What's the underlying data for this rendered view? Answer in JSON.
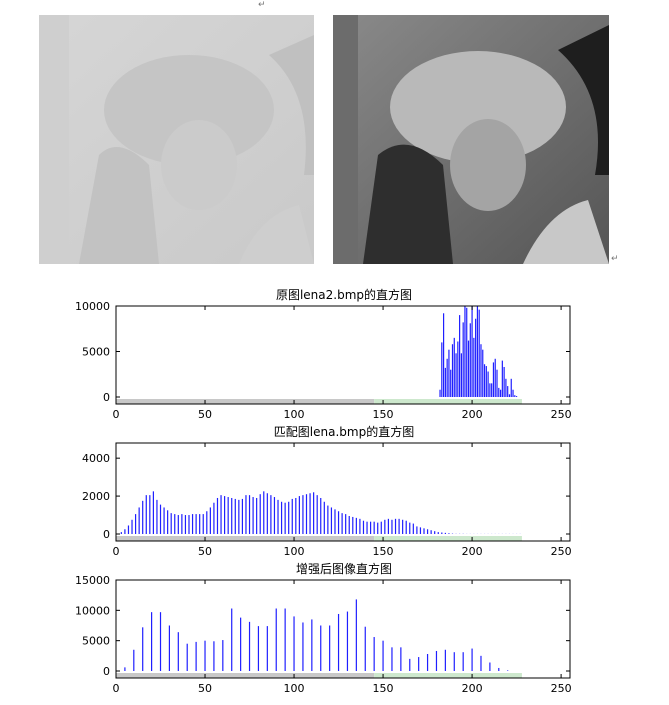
{
  "chart_data": [
    {
      "type": "bar",
      "title": "原图lena2.bmp的直方图",
      "xlim": [
        0,
        255
      ],
      "ylim": [
        0,
        10000
      ],
      "xticks": [
        0,
        50,
        100,
        150,
        200,
        250
      ],
      "yticks": [
        0,
        5000,
        10000
      ],
      "bar_color": "#1f1fff",
      "x": [
        182,
        183,
        184,
        185,
        186,
        187,
        188,
        189,
        190,
        191,
        192,
        193,
        194,
        195,
        196,
        197,
        198,
        199,
        200,
        201,
        202,
        203,
        204,
        205,
        206,
        207,
        208,
        209,
        210,
        211,
        212,
        213,
        214,
        215,
        216,
        217,
        218,
        219,
        220,
        221,
        222,
        223,
        224,
        225
      ],
      "values": [
        800,
        6000,
        9200,
        3200,
        4200,
        5200,
        3000,
        5800,
        6500,
        4800,
        6100,
        9000,
        4800,
        8200,
        10000,
        9800,
        6200,
        8100,
        10000,
        6500,
        8600,
        10000,
        9600,
        5800,
        5200,
        3600,
        3400,
        2800,
        1500,
        1500,
        3800,
        4200,
        3000,
        1000,
        800,
        4000,
        3300,
        2000,
        1200,
        300,
        2000,
        800,
        200,
        100
      ]
    },
    {
      "type": "bar",
      "title": "匹配图lena.bmp的直方图",
      "xlim": [
        0,
        255
      ],
      "ylim": [
        0,
        4800
      ],
      "xticks": [
        0,
        50,
        100,
        150,
        200,
        250
      ],
      "yticks": [
        0,
        2000,
        4000
      ],
      "bar_color": "#1f1fff",
      "x": [
        3,
        5,
        7,
        9,
        11,
        13,
        15,
        17,
        19,
        21,
        23,
        25,
        27,
        29,
        31,
        33,
        35,
        37,
        39,
        41,
        43,
        45,
        47,
        49,
        51,
        53,
        55,
        57,
        59,
        61,
        63,
        65,
        67,
        69,
        71,
        73,
        75,
        77,
        79,
        81,
        83,
        85,
        87,
        89,
        91,
        93,
        95,
        97,
        99,
        101,
        103,
        105,
        107,
        109,
        111,
        113,
        115,
        117,
        119,
        121,
        123,
        125,
        127,
        129,
        131,
        133,
        135,
        137,
        139,
        141,
        143,
        145,
        147,
        149,
        151,
        153,
        155,
        157,
        159,
        161,
        163,
        165,
        167,
        169,
        171,
        173,
        175,
        177,
        179,
        181,
        183,
        185,
        187,
        189,
        191,
        193,
        195,
        197,
        199,
        201,
        203,
        205,
        207,
        209,
        211,
        213,
        215,
        217,
        219,
        221,
        223,
        225,
        227
      ],
      "values": [
        100,
        250,
        450,
        750,
        1050,
        1400,
        1750,
        2050,
        2050,
        2250,
        1800,
        1550,
        1400,
        1250,
        1100,
        1050,
        1000,
        1050,
        1000,
        1000,
        1050,
        1050,
        1050,
        1050,
        1200,
        1400,
        1650,
        1900,
        2050,
        2000,
        1950,
        1900,
        1850,
        1800,
        1850,
        2050,
        2050,
        1950,
        1900,
        2100,
        2250,
        2150,
        2050,
        1950,
        1800,
        1700,
        1650,
        1700,
        1850,
        1900,
        2000,
        2050,
        2100,
        2150,
        2200,
        2050,
        1900,
        1700,
        1500,
        1400,
        1300,
        1200,
        1100,
        1050,
        950,
        900,
        850,
        800,
        700,
        650,
        650,
        650,
        600,
        650,
        750,
        800,
        750,
        800,
        800,
        750,
        700,
        600,
        550,
        400,
        350,
        300,
        250,
        200,
        150,
        100,
        80,
        60,
        40,
        20,
        10,
        10,
        10,
        5,
        5,
        5,
        5,
        5,
        5,
        5,
        5,
        5,
        5,
        5,
        5,
        5,
        5,
        5,
        5
      ]
    },
    {
      "type": "bar",
      "title": "增强后图像直方图",
      "xlim": [
        0,
        255
      ],
      "ylim": [
        0,
        15000
      ],
      "xticks": [
        0,
        50,
        100,
        150,
        200,
        250
      ],
      "yticks": [
        0,
        5000,
        10000,
        15000
      ],
      "bar_color": "#1f1fff",
      "x": [
        5,
        10,
        15,
        20,
        25,
        30,
        35,
        40,
        45,
        50,
        55,
        60,
        65,
        70,
        75,
        80,
        85,
        90,
        95,
        100,
        105,
        110,
        115,
        120,
        125,
        130,
        135,
        140,
        145,
        150,
        155,
        160,
        165,
        170,
        175,
        180,
        185,
        190,
        195,
        200,
        205,
        210,
        215,
        220
      ],
      "values": [
        600,
        3500,
        7200,
        9700,
        9700,
        7500,
        6400,
        4500,
        4800,
        5000,
        4900,
        5100,
        10300,
        8800,
        8100,
        7400,
        7400,
        10300,
        10300,
        9000,
        8000,
        8500,
        7500,
        7500,
        9400,
        9800,
        11800,
        7300,
        5600,
        5000,
        3900,
        3900,
        2000,
        2300,
        2800,
        3300,
        3500,
        3100,
        3100,
        3700,
        2500,
        1400,
        500,
        100
      ]
    }
  ]
}
